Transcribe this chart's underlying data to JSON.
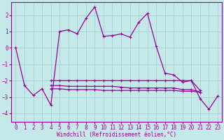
{
  "title": "",
  "xlabel": "Windchill (Refroidissement éolien,°C)",
  "ylabel": "",
  "xlim": [
    -0.5,
    23.5
  ],
  "ylim": [
    -4.5,
    2.8
  ],
  "yticks": [
    2,
    1,
    0,
    -1,
    -2,
    -3,
    -4
  ],
  "xticks": [
    0,
    1,
    2,
    3,
    4,
    5,
    6,
    7,
    8,
    9,
    10,
    11,
    12,
    13,
    14,
    15,
    16,
    17,
    18,
    19,
    20,
    21,
    22,
    23
  ],
  "bg_color": "#c5e8e8",
  "line_color": "#990099",
  "grid_color": "#aad4d4",
  "series": [
    [
      0,
      -2.3,
      -2.9,
      -2.5,
      -3.5,
      1.0,
      1.1,
      0.85,
      1.8,
      2.5,
      0.7,
      0.75,
      0.85,
      0.65,
      1.55,
      2.1,
      0.1,
      -1.55,
      -1.65,
      -2.1,
      -2.0,
      -3.1,
      -3.75,
      -2.95
    ],
    [
      null,
      null,
      null,
      null,
      -2.0,
      -2.0,
      -2.0,
      -2.0,
      -2.0,
      -2.0,
      -2.0,
      -2.0,
      -2.0,
      -2.0,
      -2.0,
      -2.0,
      -2.0,
      -2.0,
      -2.0,
      -2.0,
      -2.0,
      -2.6,
      null,
      null
    ],
    [
      null,
      null,
      null,
      null,
      -2.3,
      -2.3,
      -2.35,
      -2.35,
      -2.35,
      -2.35,
      -2.35,
      -2.35,
      -2.4,
      -2.45,
      -2.45,
      -2.45,
      -2.45,
      -2.45,
      -2.45,
      -2.55,
      -2.55,
      -2.7,
      null,
      null
    ],
    [
      null,
      null,
      null,
      null,
      -2.5,
      -2.5,
      -2.55,
      -2.55,
      -2.55,
      -2.55,
      -2.6,
      -2.6,
      -2.6,
      -2.6,
      -2.6,
      -2.6,
      -2.6,
      -2.6,
      -2.6,
      -2.65,
      -2.65,
      -2.7,
      null,
      null
    ]
  ]
}
